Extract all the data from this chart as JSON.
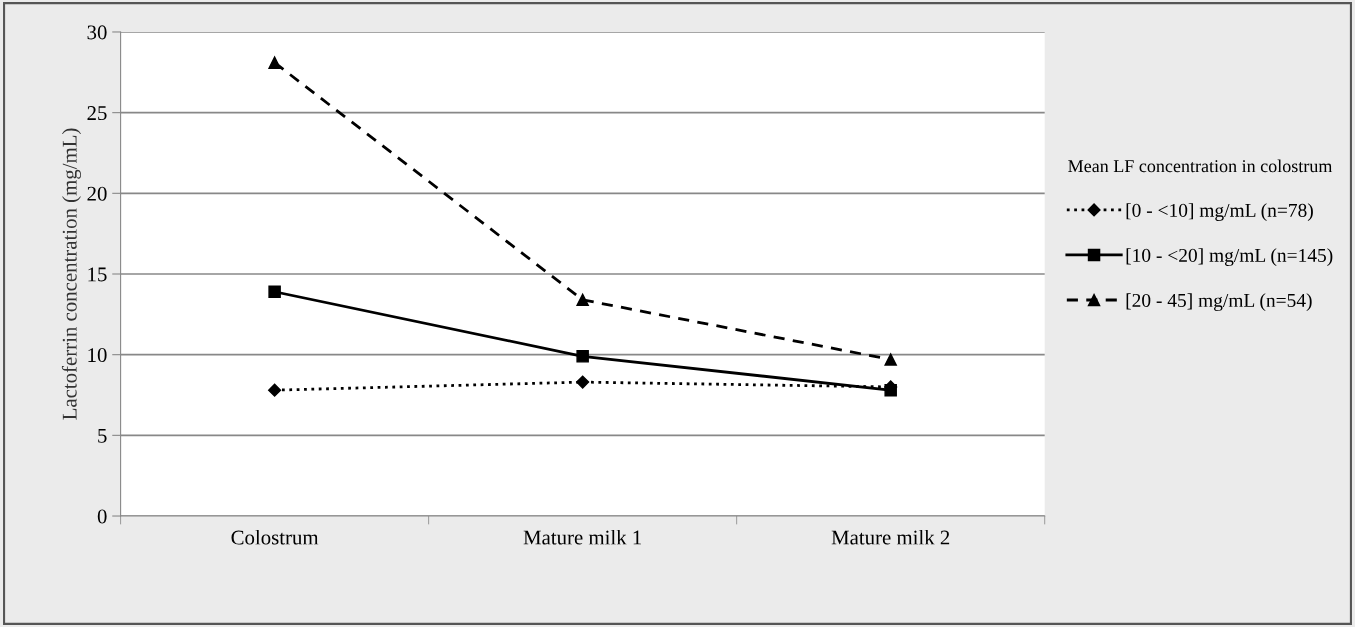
{
  "chart_data": {
    "type": "line",
    "ylabel": "Lactoferrin concentration (mg/mL)",
    "categories": [
      "Colostrum",
      "Mature milk 1",
      "Mature milk 2"
    ],
    "series": [
      {
        "name": "[0 - <10] mg/mL (n=78)",
        "color": "#000000",
        "marker": "diamond",
        "line_style": "dotted",
        "values": [
          7.8,
          8.3,
          8.0
        ]
      },
      {
        "name": "[10 - <20] mg/mL (n=145)",
        "color": "#000000",
        "marker": "square",
        "line_style": "solid",
        "values": [
          13.9,
          9.9,
          7.8
        ]
      },
      {
        "name": "[20 - 45] mg/mL (n=54)",
        "color": "#000000",
        "marker": "triangle",
        "line_style": "dashed",
        "values": [
          28.1,
          13.4,
          9.7
        ]
      }
    ],
    "legend_title": "Mean LF concentration in colostrum",
    "legend": "right",
    "ylim": [
      0,
      30
    ],
    "yticks": [
      0,
      5,
      10,
      15,
      20,
      25,
      30
    ],
    "grid": "y"
  }
}
